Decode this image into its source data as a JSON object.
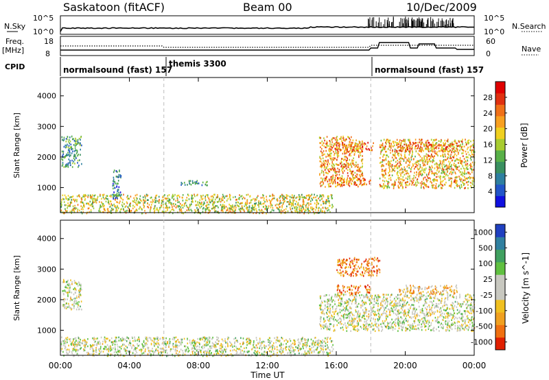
{
  "header": {
    "station": "Saskatoon (fitACF)",
    "beam": "Beam 00",
    "date": "10/Dec/2009"
  },
  "top_panels": {
    "nsky_label": "N.Sky",
    "nsky_ticks": [
      "10^5",
      "10^0"
    ],
    "nsearch_label": "N.Search",
    "nsearch_ticks": [
      "10^5",
      "10^0"
    ],
    "freq_label": "Freq.",
    "freq_unit": "[MHz]",
    "freq_ticks": [
      "18",
      "8"
    ],
    "nave_label": "Nave",
    "nave_ticks": [
      "60",
      "0"
    ],
    "cpid_label": "CPID"
  },
  "cpid_segments": [
    {
      "label": "normalsound (fast) 157",
      "start": "00:00",
      "end": "06:00"
    },
    {
      "label": "themis 3300",
      "start": "06:00",
      "end": "18:00"
    },
    {
      "label": "normalsound (fast) 157",
      "start": "18:00",
      "end": "24:00"
    }
  ],
  "chart_data": [
    {
      "type": "heatmap",
      "ylabel": "Slant Range [km]",
      "ylim": [
        180,
        4600
      ],
      "yticks": [
        "1000",
        "2000",
        "3000",
        "4000"
      ],
      "xlim": [
        0,
        24
      ],
      "colorbar_label": "Power [dB]",
      "colorbar_ticks": [
        "4",
        "8",
        "12",
        "16",
        "20",
        "24",
        "28"
      ],
      "colorbar_colors": [
        "#1010e0",
        "#2255c8",
        "#2e7fa0",
        "#3a9060",
        "#58b048",
        "#a8cc30",
        "#f0d020",
        "#f8a020",
        "#f07018",
        "#e03010",
        "#e00000"
      ],
      "echo_regions": [
        {
          "t0": 0.0,
          "t1": 15.8,
          "r0": 180,
          "r1": 800,
          "level": 0.55
        },
        {
          "t0": 0.05,
          "t1": 1.2,
          "r0": 1700,
          "r1": 2700,
          "level": 0.3
        },
        {
          "t0": 3.0,
          "t1": 3.5,
          "r0": 650,
          "r1": 1600,
          "level": 0.2
        },
        {
          "t0": 6.9,
          "t1": 8.5,
          "r0": 1100,
          "r1": 1250,
          "level": 0.3
        },
        {
          "t0": 15.0,
          "t1": 17.5,
          "r0": 1050,
          "r1": 2700,
          "level": 0.7
        },
        {
          "t0": 15.8,
          "t1": 18.2,
          "r0": 2200,
          "r1": 2500,
          "level": 0.8
        },
        {
          "t0": 16.0,
          "t1": 18.0,
          "r0": 1100,
          "r1": 1350,
          "level": 0.8
        },
        {
          "t0": 18.5,
          "t1": 24.0,
          "r0": 1000,
          "r1": 2600,
          "level": 0.65
        },
        {
          "t0": 19.5,
          "t1": 23.0,
          "r0": 2200,
          "r1": 2500,
          "level": 0.75
        }
      ]
    },
    {
      "type": "heatmap",
      "ylabel": "Slant Range [km]",
      "ylim": [
        180,
        4600
      ],
      "yticks": [
        "1000",
        "2000",
        "3000",
        "4000"
      ],
      "xlim": [
        0,
        24
      ],
      "xticks": [
        "00:00",
        "04:00",
        "08:00",
        "12:00",
        "16:00",
        "20:00",
        "00:00"
      ],
      "xlabel": "Time UT",
      "colorbar_label": "Velocity [m s^-1]",
      "colorbar_ticks": [
        "1000",
        "500",
        "100",
        "25",
        "-25",
        "-100",
        "-500",
        "-1000"
      ],
      "colorbar_colors": [
        "#2040c0",
        "#3080a0",
        "#40a060",
        "#60c040",
        "#c8c8c0",
        "#c8c8c0",
        "#f0c020",
        "#f0a020",
        "#f07010",
        "#e02000"
      ],
      "echo_regions": [
        {
          "t0": 0.0,
          "t1": 15.8,
          "r0": 180,
          "r1": 800,
          "level": 0.5
        },
        {
          "t0": 0.1,
          "t1": 1.2,
          "r0": 1700,
          "r1": 2700,
          "level": 0.5
        },
        {
          "t0": 15.0,
          "t1": 24.0,
          "r0": 1000,
          "r1": 2200,
          "level": 0.5
        },
        {
          "t0": 16.0,
          "t1": 18.0,
          "r0": 2200,
          "r1": 2500,
          "level": 0.85
        },
        {
          "t0": 19.5,
          "t1": 23.0,
          "r0": 2200,
          "r1": 2500,
          "level": 0.7
        },
        {
          "t0": 16.0,
          "t1": 18.5,
          "r0": 2800,
          "r1": 3400,
          "level": 0.85
        }
      ]
    }
  ]
}
